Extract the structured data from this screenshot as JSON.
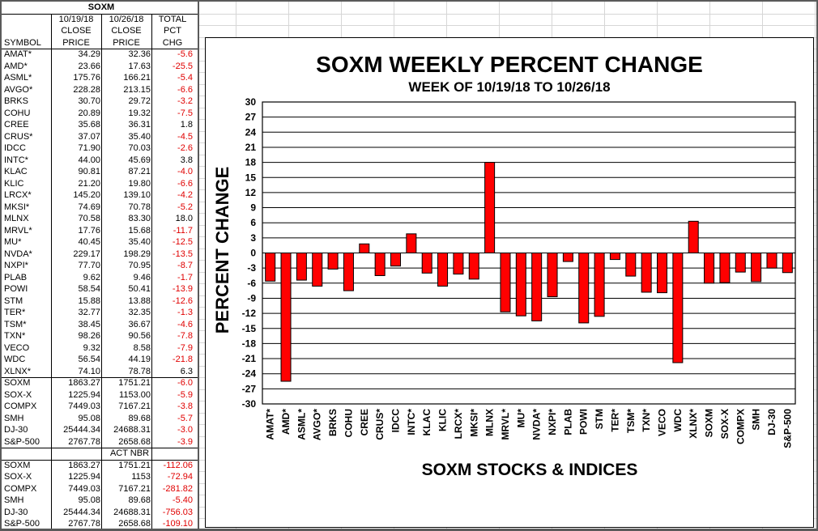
{
  "sheet": {
    "title": "SOXM",
    "head1": [
      "",
      "10/19/18",
      "10/26/18",
      "TOTAL"
    ],
    "head2": [
      "",
      "CLOSE",
      "CLOSE",
      "PCT"
    ],
    "head3": [
      "SYMBOL",
      "PRICE",
      "PRICE",
      "CHG"
    ],
    "rows": [
      [
        "AMAT*",
        "34.29",
        "32.36",
        "-5.6"
      ],
      [
        "AMD*",
        "23.66",
        "17.63",
        "-25.5"
      ],
      [
        "ASML*",
        "175.76",
        "166.21",
        "-5.4"
      ],
      [
        "AVGO*",
        "228.28",
        "213.15",
        "-6.6"
      ],
      [
        "BRKS",
        "30.70",
        "29.72",
        "-3.2"
      ],
      [
        "COHU",
        "20.89",
        "19.32",
        "-7.5"
      ],
      [
        "CREE",
        "35.68",
        "36.31",
        "1.8"
      ],
      [
        "CRUS*",
        "37.07",
        "35.40",
        "-4.5"
      ],
      [
        "IDCC",
        "71.90",
        "70.03",
        "-2.6"
      ],
      [
        "INTC*",
        "44.00",
        "45.69",
        "3.8"
      ],
      [
        "KLAC",
        "90.81",
        "87.21",
        "-4.0"
      ],
      [
        "KLIC",
        "21.20",
        "19.80",
        "-6.6"
      ],
      [
        "LRCX*",
        "145.20",
        "139.10",
        "-4.2"
      ],
      [
        "MKSI*",
        "74.69",
        "70.78",
        "-5.2"
      ],
      [
        "MLNX",
        "70.58",
        "83.30",
        "18.0"
      ],
      [
        "MRVL*",
        "17.76",
        "15.68",
        "-11.7"
      ],
      [
        "MU*",
        "40.45",
        "35.40",
        "-12.5"
      ],
      [
        "NVDA*",
        "229.17",
        "198.29",
        "-13.5"
      ],
      [
        "NXPI*",
        "77.70",
        "70.95",
        "-8.7"
      ],
      [
        "PLAB",
        "9.62",
        "9.46",
        "-1.7"
      ],
      [
        "POWI",
        "58.54",
        "50.41",
        "-13.9"
      ],
      [
        "STM",
        "15.88",
        "13.88",
        "-12.6"
      ],
      [
        "TER*",
        "32.77",
        "32.35",
        "-1.3"
      ],
      [
        "TSM*",
        "38.45",
        "36.67",
        "-4.6"
      ],
      [
        "TXN*",
        "98.26",
        "90.56",
        "-7.8"
      ],
      [
        "VECO",
        "9.32",
        "8.58",
        "-7.9"
      ],
      [
        "WDC",
        "56.54",
        "44.19",
        "-21.8"
      ],
      [
        "XLNX*",
        "74.10",
        "78.78",
        "6.3"
      ]
    ],
    "index_rows": [
      [
        "SOXM",
        "1863.27",
        "1751.21",
        "-6.0"
      ],
      [
        "SOX-X",
        "1225.94",
        "1153.00",
        "-5.9"
      ],
      [
        "COMPX",
        "7449.03",
        "7167.21",
        "-3.8"
      ],
      [
        "SMH",
        "95.08",
        "89.68",
        "-5.7"
      ],
      [
        "DJ-30",
        "25444.34",
        "24688.31",
        "-3.0"
      ],
      [
        "S&P-500",
        "2767.78",
        "2658.68",
        "-3.9"
      ]
    ],
    "act_header": "ACT NBR",
    "act_rows": [
      [
        "SOXM",
        "1863.27",
        "1751.21",
        "-112.06"
      ],
      [
        "SOX-X",
        "1225.94",
        "1153",
        "-72.94"
      ],
      [
        "COMPX",
        "7449.03",
        "7167.21",
        "-281.82"
      ],
      [
        "SMH",
        "95.08",
        "89.68",
        "-5.40"
      ],
      [
        "DJ-30",
        "25444.34",
        "24688.31",
        "-756.03"
      ],
      [
        "S&P-500",
        "2767.78",
        "2658.68",
        "-109.10"
      ]
    ]
  },
  "chart_data": {
    "type": "bar",
    "title": "SOXM WEEKLY PERCENT CHANGE",
    "subtitle": "WEEK OF 10/19/18 TO 10/26/18",
    "xlabel": "SOXM STOCKS & INDICES",
    "ylabel": "PERCENT CHANGE",
    "ylim": [
      -30,
      30
    ],
    "ytick_step": 3,
    "grid": true,
    "bar_color": "#ff0000",
    "categories": [
      "AMAT*",
      "AMD*",
      "ASML*",
      "AVGO*",
      "BRKS",
      "COHU",
      "CREE",
      "CRUS*",
      "IDCC",
      "INTC*",
      "KLAC",
      "KLIC",
      "LRCX*",
      "MKSI*",
      "MLNX",
      "MRVL*",
      "MU*",
      "NVDA*",
      "NXPI*",
      "PLAB",
      "POWI",
      "STM",
      "TER*",
      "TSM*",
      "TXN*",
      "VECO",
      "WDC",
      "XLNX*",
      "SOXM",
      "SOX-X",
      "COMPX",
      "SMH",
      "DJ-30",
      "S&P-500"
    ],
    "values": [
      -5.6,
      -25.5,
      -5.4,
      -6.6,
      -3.2,
      -7.5,
      1.8,
      -4.5,
      -2.6,
      3.8,
      -4.0,
      -6.6,
      -4.2,
      -5.2,
      18.0,
      -11.7,
      -12.5,
      -13.5,
      -8.7,
      -1.7,
      -13.9,
      -12.6,
      -1.3,
      -4.6,
      -7.8,
      -7.9,
      -21.8,
      6.3,
      -6.0,
      -5.9,
      -3.8,
      -5.7,
      -3.0,
      -3.9
    ]
  }
}
